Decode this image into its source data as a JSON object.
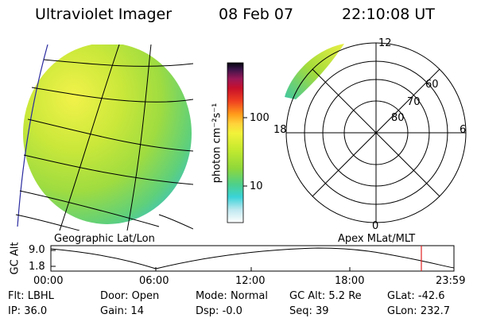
{
  "header": {
    "instrument": "Ultraviolet Imager",
    "date": "08 Feb 07",
    "time": "22:10:08 UT"
  },
  "colorbar": {
    "unit_label": "photon cm⁻²s⁻¹",
    "ticks": [
      "100",
      "10"
    ]
  },
  "panels": {
    "left_label": "Geographic Lat/Lon",
    "right_label": "Apex MLat/MLT"
  },
  "polar": {
    "mlt_labels": [
      "12",
      "18",
      "6",
      "0"
    ],
    "lat_labels": [
      "60",
      "70",
      "80"
    ]
  },
  "altitude_plot": {
    "ylabel": "GC Alt",
    "y_ticks": [
      "9.0",
      "1.8"
    ],
    "x_ticks": [
      "00:00",
      "06:00",
      "12:00",
      "18:00",
      "23:59"
    ]
  },
  "info": {
    "rows": [
      [
        {
          "label": "Flt:",
          "value": "LBHL"
        },
        {
          "label": "Door:",
          "value": "Open"
        },
        {
          "label": "Mode:",
          "value": "Normal"
        },
        {
          "label": "GC Alt:",
          "value": "5.2 Re"
        },
        {
          "label": "GLat:",
          "value": "-42.6"
        }
      ],
      [
        {
          "label": "IP:",
          "value": "36.0"
        },
        {
          "label": "Gain:",
          "value": "14"
        },
        {
          "label": "Dsp:",
          "value": "-0.0"
        },
        {
          "label": "Seq:",
          "value": "39"
        },
        {
          "label": "GLon:",
          "value": "232.7"
        }
      ]
    ]
  }
}
